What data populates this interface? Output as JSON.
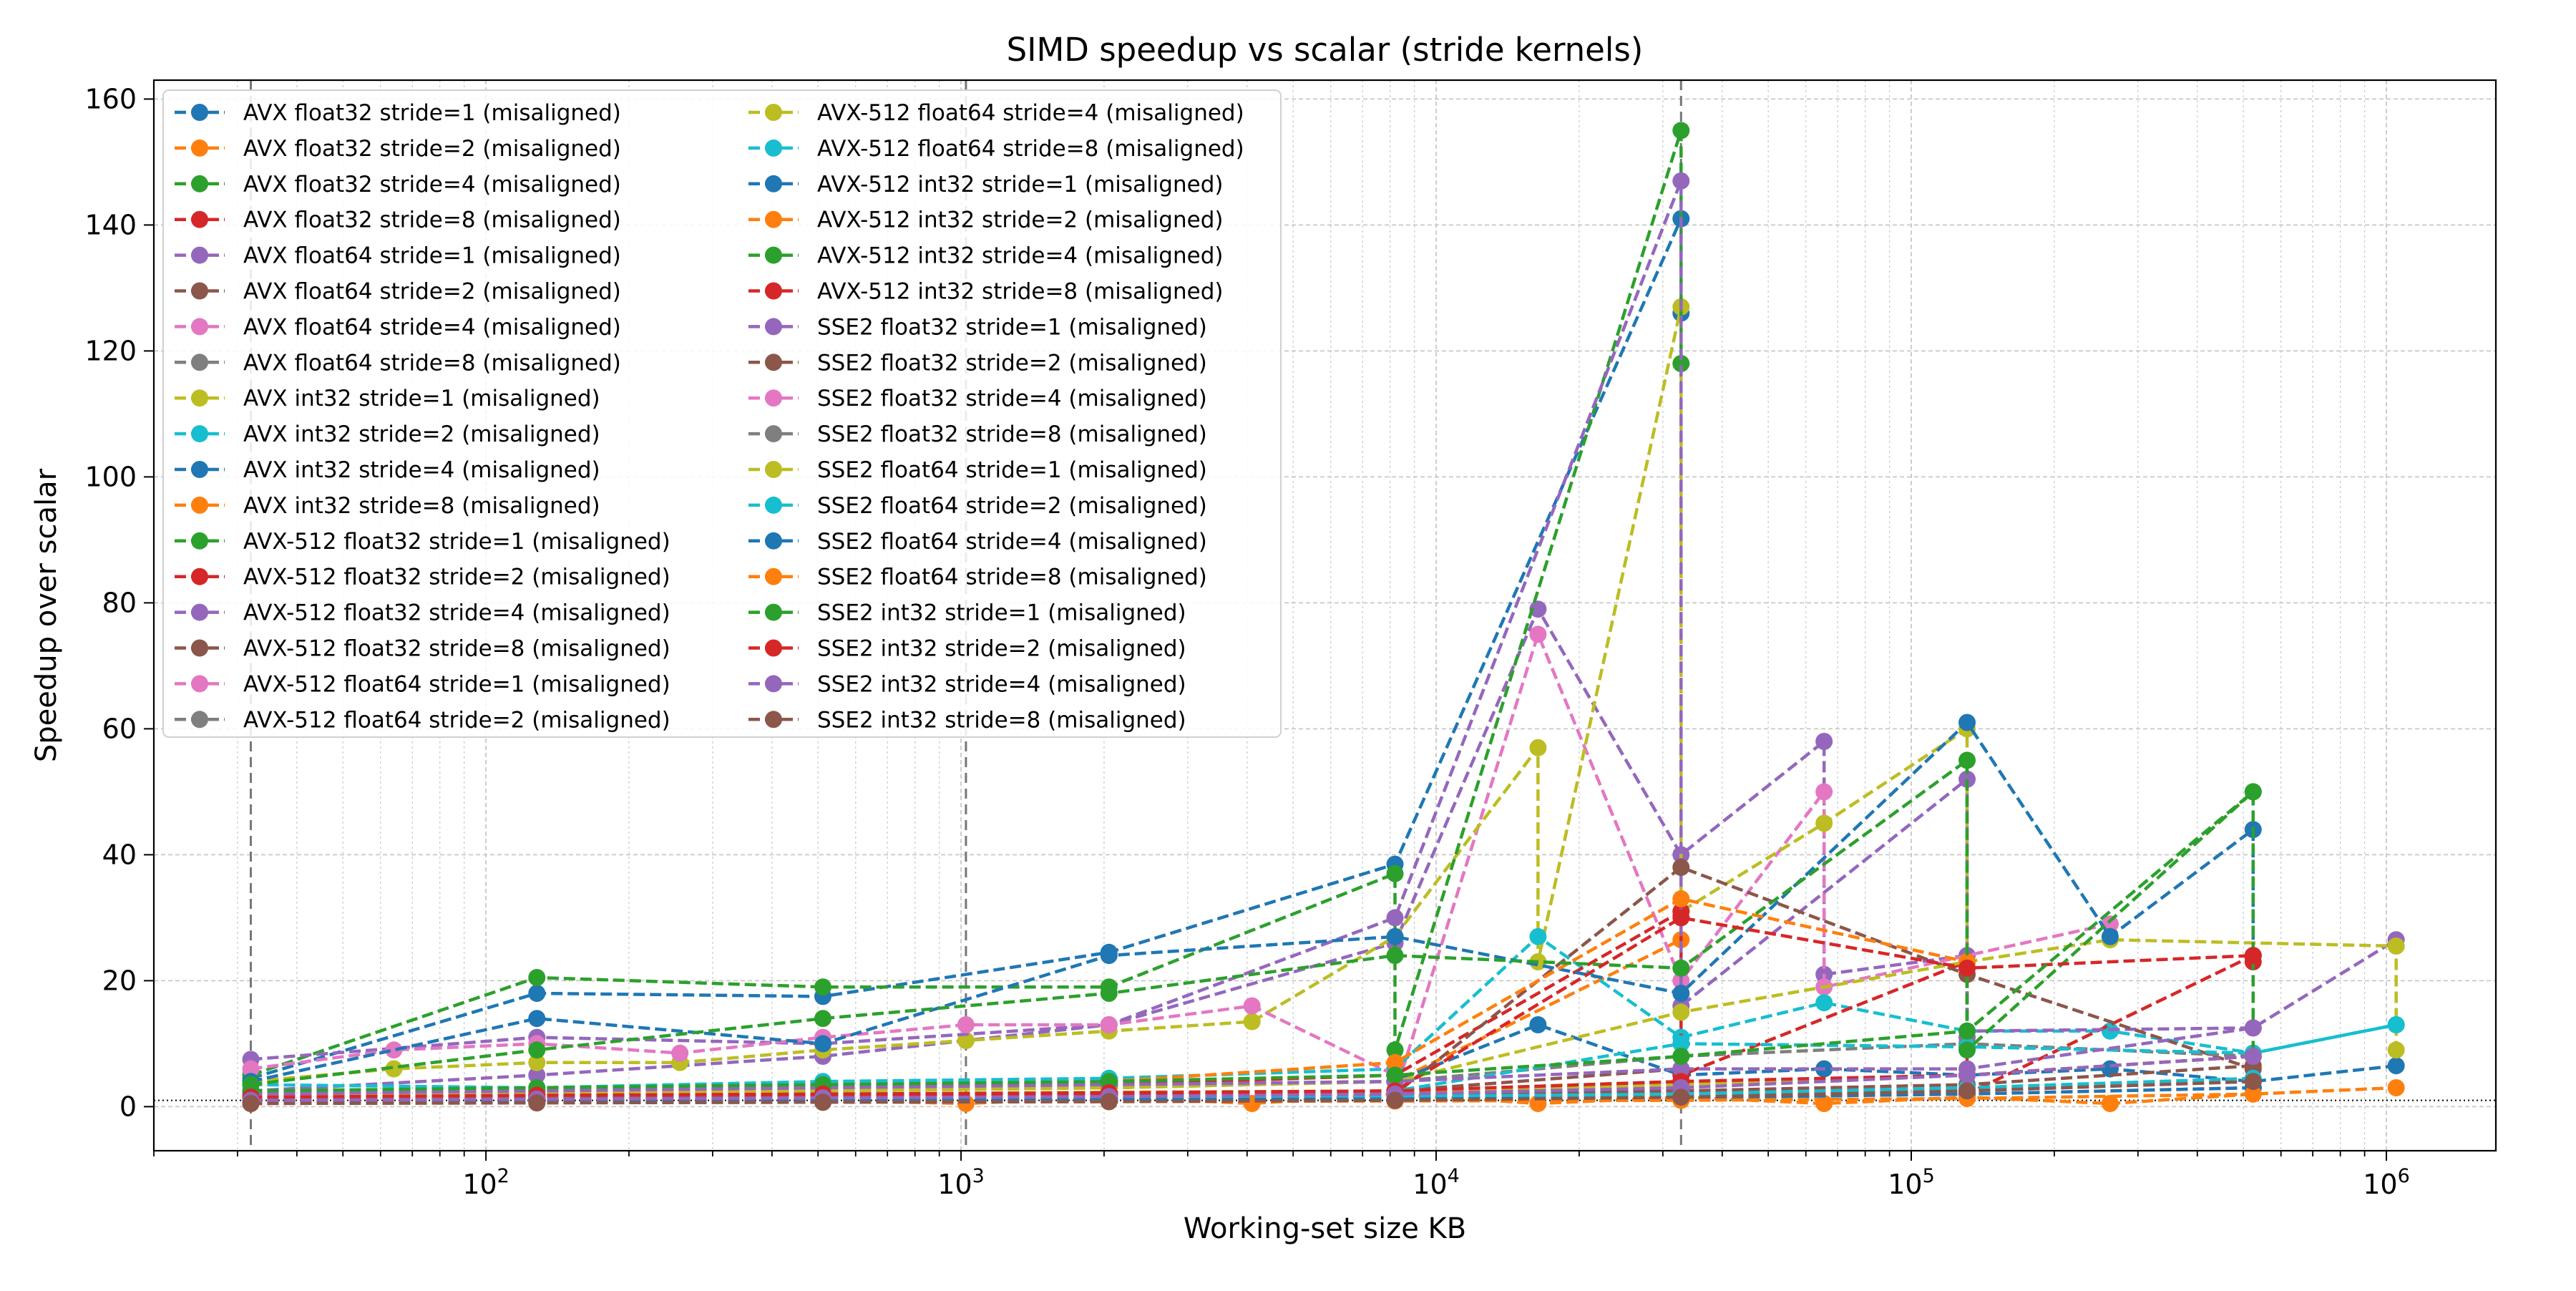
{
  "chart_data": {
    "type": "line",
    "title": "SIMD speedup vs scalar (stride kernels)",
    "xlabel": "Working-set size KB",
    "ylabel": "Speedup over scalar",
    "x_scale": "log",
    "xlim": [
      20,
      1700000
    ],
    "ylim": [
      -7,
      163
    ],
    "x_ticks": [
      {
        "value": 100,
        "base": "10",
        "exp": "2"
      },
      {
        "value": 1000,
        "base": "10",
        "exp": "3"
      },
      {
        "value": 10000,
        "base": "10",
        "exp": "4"
      },
      {
        "value": 100000,
        "base": "10",
        "exp": "5"
      },
      {
        "value": 1000000,
        "base": "10",
        "exp": "6"
      }
    ],
    "y_ticks": [
      0,
      20,
      40,
      60,
      80,
      100,
      120,
      140,
      160
    ],
    "grid": true,
    "legend_position": "upper-left",
    "reference_line_y": 1,
    "vertical_markers": [
      32,
      1024,
      32768
    ],
    "series": [
      {
        "name": "AVX float32 stride=1 (misaligned)",
        "color": "#1f77b4",
        "x": [
          32,
          128,
          512,
          2048,
          8192,
          32768,
          32768
        ],
        "y": [
          4.5,
          18,
          17.5,
          24.5,
          38.5,
          141,
          126
        ]
      },
      {
        "name": "AVX float32 stride=2 (misaligned)",
        "color": "#ff7f0e",
        "x": [
          32,
          128,
          512,
          2048,
          8192,
          32768
        ],
        "y": [
          1.5,
          2,
          2.5,
          3,
          4,
          26.5
        ]
      },
      {
        "name": "AVX float32 stride=4 (misaligned)",
        "color": "#2ca02c",
        "x": [
          32,
          128,
          512,
          2048,
          8192,
          32768
        ],
        "y": [
          1.3,
          1.5,
          1.8,
          2,
          2.5,
          4
        ]
      },
      {
        "name": "AVX float32 stride=8 (misaligned)",
        "color": "#d62728",
        "x": [
          32,
          128,
          512,
          2048,
          8192,
          32768
        ],
        "y": [
          1.2,
          1.3,
          1.5,
          1.7,
          2,
          3
        ]
      },
      {
        "name": "AVX float64 stride=1 (misaligned)",
        "color": "#9467bd",
        "x": [
          32,
          128,
          512,
          2048,
          8192,
          16384,
          32768,
          65536,
          65536,
          131072,
          131072
        ],
        "y": [
          2.5,
          5,
          8,
          13,
          26,
          79,
          40,
          58,
          21,
          24,
          11
        ]
      },
      {
        "name": "AVX float64 stride=2 (misaligned)",
        "color": "#8c564b",
        "x": [
          32,
          128,
          512,
          2048,
          8192,
          32768
        ],
        "y": [
          1.3,
          1.5,
          1.7,
          2,
          2.5,
          6
        ]
      },
      {
        "name": "AVX float64 stride=4 (misaligned)",
        "color": "#e377c2",
        "x": [
          32,
          128,
          512,
          2048,
          8192,
          16384,
          32768,
          65536,
          65536,
          262144
        ],
        "y": [
          1.2,
          1.3,
          1.4,
          1.5,
          2,
          75,
          20,
          50,
          19,
          29
        ]
      },
      {
        "name": "AVX float64 stride=8 (misaligned)",
        "color": "#7f7f7f",
        "x": [
          32,
          128,
          512,
          2048,
          8192,
          32768
        ],
        "y": [
          1,
          1.1,
          1.2,
          1.3,
          1.5,
          4
        ]
      },
      {
        "name": "AVX int32 stride=1 (misaligned)",
        "color": "#bcbd22",
        "x": [
          32,
          64,
          128,
          256,
          512,
          1024,
          2048,
          4096,
          8192,
          16384,
          16384,
          32768,
          32768,
          65536,
          131072,
          131072
        ],
        "y": [
          4,
          6,
          7,
          7,
          9,
          10.5,
          12,
          13.5,
          27,
          57,
          23,
          127,
          31,
          45,
          60,
          22
        ]
      },
      {
        "name": "AVX int32 stride=2 (misaligned)",
        "color": "#17becf",
        "x": [
          32,
          128,
          512,
          2048,
          8192,
          16384,
          32768,
          65536,
          131072,
          262144,
          524288,
          1048576
        ],
        "y": [
          3.5,
          3,
          4,
          4.5,
          6,
          27,
          11,
          16.5,
          12,
          12,
          8.5,
          13
        ]
      },
      {
        "name": "AVX int32 stride=4 (misaligned)",
        "color": "#1f77b4",
        "x": [
          32,
          128,
          512,
          2048,
          8192,
          16384,
          32768,
          65536,
          131072,
          262144,
          524288,
          1048576
        ],
        "y": [
          2,
          2.5,
          3,
          3.5,
          4,
          13,
          5,
          6,
          5,
          6,
          4,
          6.5
        ]
      },
      {
        "name": "AVX int32 stride=8 (misaligned)",
        "color": "#ff7f0e",
        "x": [
          32,
          128,
          512,
          1024,
          2048,
          4096,
          8192,
          16384,
          32768,
          65536,
          131072,
          262144,
          524288,
          1048576
        ],
        "y": [
          0.5,
          1.5,
          1,
          0.5,
          1.5,
          0.5,
          2,
          0.5,
          1.5,
          0.5,
          1.5,
          0.5,
          2,
          3
        ]
      },
      {
        "name": "AVX-512 float32 stride=1 (misaligned)",
        "color": "#2ca02c",
        "x": [
          32,
          128,
          512,
          2048,
          8192,
          8192,
          32768,
          32768
        ],
        "y": [
          5,
          20.5,
          19,
          19,
          37,
          9,
          155,
          118
        ]
      },
      {
        "name": "AVX-512 float32 stride=2 (misaligned)",
        "color": "#d62728",
        "x": [
          32,
          128,
          512,
          2048,
          8192,
          32768,
          32768,
          131072,
          131072,
          524288,
          524288
        ],
        "y": [
          2,
          2.5,
          3,
          3.5,
          5,
          31,
          5,
          23,
          2,
          24,
          23
        ]
      },
      {
        "name": "AVX-512 float32 stride=4 (misaligned)",
        "color": "#9467bd",
        "x": [
          32,
          128,
          512,
          2048,
          8192,
          32768,
          32768,
          131072,
          131072,
          524288,
          1048576
        ],
        "y": [
          7.5,
          11,
          10,
          13,
          30,
          147,
          16,
          52,
          12,
          12.5,
          26.5
        ]
      },
      {
        "name": "AVX-512 float32 stride=8 (misaligned)",
        "color": "#8c564b",
        "x": [
          32,
          128,
          512,
          2048,
          8192,
          32768,
          131072,
          524288
        ],
        "y": [
          1,
          1.2,
          1.4,
          1.6,
          2,
          38,
          21,
          6
        ]
      },
      {
        "name": "AVX-512 float64 stride=1 (misaligned)",
        "color": "#e377c2",
        "x": [
          32,
          64,
          128,
          256,
          512,
          1024,
          2048,
          4096,
          8192
        ],
        "y": [
          6,
          9,
          10,
          8.5,
          11,
          13,
          13,
          16,
          5
        ]
      },
      {
        "name": "AVX-512 float64 stride=2 (misaligned)",
        "color": "#7f7f7f",
        "x": [
          32,
          128,
          512,
          2048,
          8192,
          32768,
          131072,
          524288
        ],
        "y": [
          1.3,
          2,
          2.5,
          3,
          4,
          8,
          10,
          8
        ]
      },
      {
        "name": "AVX-512 float64 stride=4 (misaligned)",
        "color": "#bcbd22",
        "x": [
          32,
          128,
          512,
          2048,
          8192,
          32768,
          131072,
          262144,
          1048576,
          1048576
        ],
        "y": [
          1.5,
          2,
          2.5,
          3,
          4,
          15,
          23,
          26.5,
          25.5,
          9
        ]
      },
      {
        "name": "AVX-512 float64 stride=8 (misaligned)",
        "color": "#17becf",
        "x": [
          32,
          128,
          512,
          2048,
          8192,
          32768,
          131072,
          524288,
          1048576
        ],
        "y": [
          1,
          1.3,
          1.6,
          2,
          2.5,
          10,
          9.5,
          8.5,
          13
        ]
      },
      {
        "name": "AVX-512 int32 stride=1 (misaligned)",
        "color": "#1f77b4",
        "x": [
          32,
          128,
          512,
          2048,
          8192,
          32768,
          131072,
          262144,
          524288,
          524288
        ],
        "y": [
          4,
          14,
          10,
          24,
          27,
          18,
          61,
          27,
          44,
          24
        ]
      },
      {
        "name": "AVX-512 int32 stride=2 (misaligned)",
        "color": "#ff7f0e",
        "x": [
          32,
          128,
          512,
          2048,
          8192,
          32768,
          131072
        ],
        "y": [
          2,
          2.5,
          3,
          4,
          7,
          33,
          23
        ]
      },
      {
        "name": "AVX-512 int32 stride=4 (misaligned)",
        "color": "#2ca02c",
        "x": [
          32,
          128,
          512,
          2048,
          8192,
          32768,
          131072,
          131072,
          524288,
          524288
        ],
        "y": [
          3.5,
          9,
          14,
          18,
          24,
          22,
          55,
          9,
          50,
          3
        ]
      },
      {
        "name": "AVX-512 int32 stride=8 (misaligned)",
        "color": "#d62728",
        "x": [
          32,
          128,
          512,
          2048,
          8192,
          32768,
          131072,
          524288
        ],
        "y": [
          1.2,
          1.5,
          1.8,
          2,
          2.5,
          30,
          22,
          24
        ]
      },
      {
        "name": "SSE2 float32 stride=1 (misaligned)",
        "color": "#9467bd",
        "x": [
          32,
          128,
          512,
          2048,
          8192,
          32768,
          131072,
          524288
        ],
        "y": [
          2,
          2.5,
          3,
          3.5,
          4,
          6,
          6,
          12.5
        ]
      },
      {
        "name": "SSE2 float32 stride=2 (misaligned)",
        "color": "#8c564b",
        "x": [
          32,
          128,
          512,
          2048,
          8192,
          32768,
          131072,
          524288
        ],
        "y": [
          1.2,
          1.3,
          1.4,
          1.5,
          1.7,
          2.5,
          3.5,
          6.5
        ]
      },
      {
        "name": "SSE2 float32 stride=4 (misaligned)",
        "color": "#e377c2",
        "x": [
          32,
          128,
          512,
          2048,
          8192,
          32768,
          131072,
          524288
        ],
        "y": [
          1,
          1.1,
          1.2,
          1.3,
          1.5,
          2,
          2.5,
          4
        ]
      },
      {
        "name": "SSE2 float32 stride=8 (misaligned)",
        "color": "#7f7f7f",
        "x": [
          32,
          128,
          512,
          2048,
          8192,
          32768,
          131072,
          524288
        ],
        "y": [
          0.8,
          0.9,
          1,
          1.1,
          1.2,
          1.5,
          2,
          3
        ]
      },
      {
        "name": "SSE2 float64 stride=1 (misaligned)",
        "color": "#bcbd22",
        "x": [
          32,
          128,
          512,
          2048,
          8192,
          32768,
          131072,
          524288
        ],
        "y": [
          1.5,
          1.8,
          2,
          2.3,
          2.5,
          3.5,
          5,
          8
        ]
      },
      {
        "name": "SSE2 float64 stride=2 (misaligned)",
        "color": "#17becf",
        "x": [
          32,
          128,
          512,
          2048,
          8192,
          32768,
          131072,
          524288
        ],
        "y": [
          1,
          1.1,
          1.2,
          1.4,
          1.6,
          2,
          3,
          4.5
        ]
      },
      {
        "name": "SSE2 float64 stride=4 (misaligned)",
        "color": "#1f77b4",
        "x": [
          32,
          128,
          512,
          2048,
          8192,
          32768,
          131072,
          524288
        ],
        "y": [
          0.8,
          0.9,
          1,
          1.1,
          1.2,
          1.4,
          2,
          3
        ]
      },
      {
        "name": "SSE2 float64 stride=8 (misaligned)",
        "color": "#ff7f0e",
        "x": [
          32,
          128,
          512,
          2048,
          8192,
          32768,
          131072,
          524288
        ],
        "y": [
          0.5,
          0.6,
          0.7,
          0.8,
          0.9,
          1,
          1.3,
          2
        ]
      },
      {
        "name": "SSE2 int32 stride=1 (misaligned)",
        "color": "#2ca02c",
        "x": [
          32,
          128,
          512,
          2048,
          8192,
          32768,
          131072,
          524288
        ],
        "y": [
          2.5,
          3,
          3.5,
          4,
          5,
          8,
          12,
          50
        ]
      },
      {
        "name": "SSE2 int32 stride=2 (misaligned)",
        "color": "#d62728",
        "x": [
          32,
          128,
          512,
          2048,
          8192,
          32768,
          131072,
          524288
        ],
        "y": [
          1.5,
          1.8,
          2,
          2.2,
          2.5,
          4,
          5,
          8
        ]
      },
      {
        "name": "SSE2 int32 stride=4 (misaligned)",
        "color": "#9467bd",
        "x": [
          32,
          128,
          512,
          2048,
          8192,
          32768,
          131072,
          524288
        ],
        "y": [
          1,
          1.2,
          1.4,
          1.6,
          2,
          3,
          5,
          8
        ]
      },
      {
        "name": "SSE2 int32 stride=8 (misaligned)",
        "color": "#8c564b",
        "x": [
          32,
          128,
          512,
          2048,
          8192,
          32768,
          131072,
          524288
        ],
        "y": [
          0.5,
          0.6,
          0.7,
          0.8,
          1,
          1.5,
          2.5,
          4
        ]
      }
    ]
  }
}
